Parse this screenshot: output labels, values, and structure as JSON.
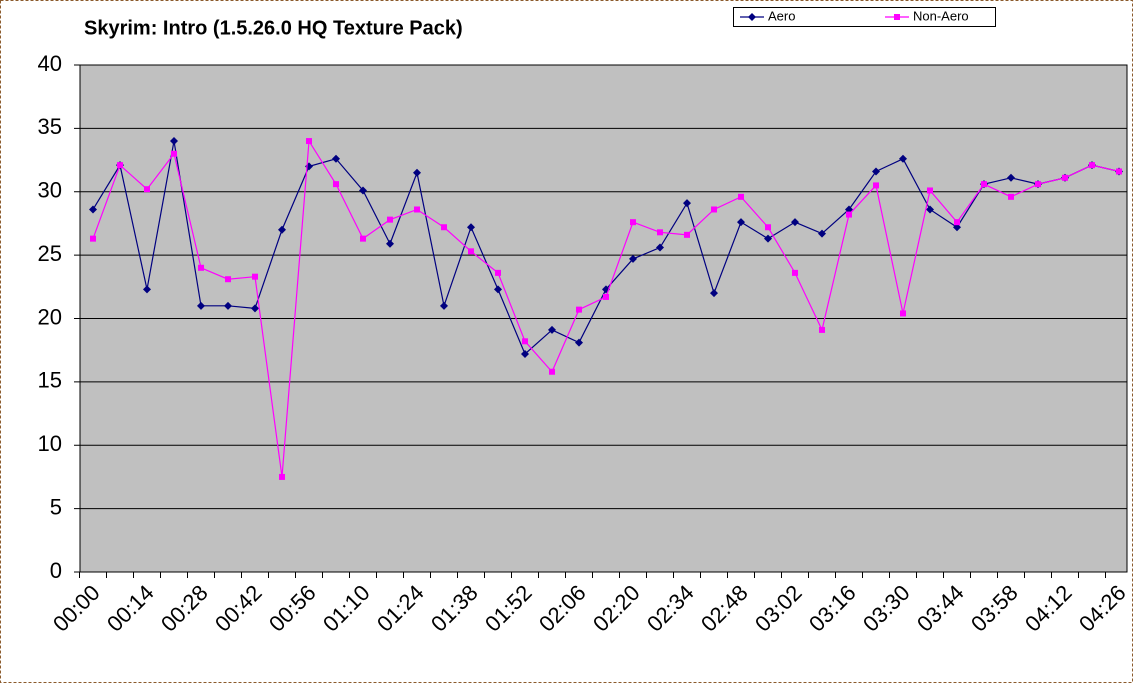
{
  "chart_data": {
    "type": "line",
    "title": "Skyrim: Intro (1.5.26.0 HQ Texture Pack)",
    "categories": [
      "00:00",
      null,
      "00:14",
      null,
      "00:28",
      null,
      "00:42",
      null,
      "00:56",
      null,
      "01:10",
      null,
      "01:24",
      null,
      "01:38",
      null,
      "01:52",
      null,
      "02:06",
      null,
      "02:20",
      null,
      "02:34",
      null,
      "02:48",
      null,
      "03:02",
      null,
      "03:16",
      null,
      "03:30",
      null,
      "03:44",
      null,
      "03:58",
      null,
      "04:12",
      null,
      "04:26"
    ],
    "series": [
      {
        "name": "Aero",
        "color": "#000080",
        "marker": "diamond",
        "values": [
          28.6,
          32.1,
          22.3,
          34.0,
          21.0,
          21.0,
          20.8,
          27.0,
          32.0,
          32.6,
          30.1,
          25.9,
          31.5,
          21.0,
          27.2,
          22.3,
          17.2,
          19.1,
          18.1,
          22.3,
          24.7,
          25.6,
          29.1,
          22.0,
          27.6,
          26.3,
          27.6,
          26.7,
          28.6,
          31.6,
          32.6,
          28.6,
          27.2,
          30.6,
          31.1,
          30.6,
          31.1,
          32.1,
          31.6
        ]
      },
      {
        "name": "Non-Aero",
        "color": "#ff00ff",
        "marker": "square",
        "values": [
          26.3,
          32.1,
          30.2,
          33.0,
          24.0,
          23.1,
          23.3,
          7.5,
          34.0,
          30.6,
          26.3,
          27.8,
          28.6,
          27.2,
          25.3,
          23.6,
          18.2,
          15.8,
          20.7,
          21.7,
          27.6,
          26.8,
          26.6,
          28.6,
          29.6,
          27.2,
          23.6,
          19.1,
          28.2,
          30.5,
          20.4,
          30.1,
          27.6,
          30.6,
          29.6,
          30.6,
          31.1,
          32.1,
          31.6
        ]
      }
    ],
    "ylim": [
      0,
      40
    ],
    "yticks": [
      0,
      5,
      10,
      15,
      20,
      25,
      30,
      35,
      40
    ],
    "grid": true,
    "legend": "top"
  }
}
